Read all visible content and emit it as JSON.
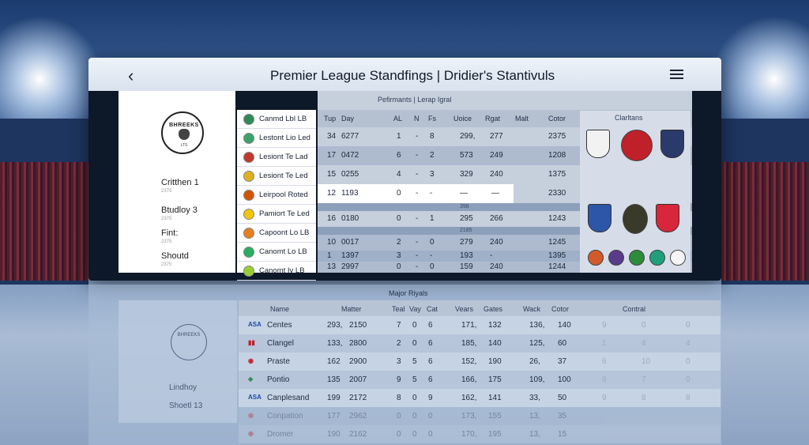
{
  "header": {
    "back_icon": "‹",
    "title": "Premier League Standfings | Dridier's Stantivuls"
  },
  "left_panel": {
    "crest_text": "BHREEKS",
    "crest_sub": "LTS",
    "stats": [
      {
        "label": "Critthen 1",
        "sub": "2375"
      },
      {
        "label": "Btudloy 3",
        "sub": "2375"
      },
      {
        "label": "Fint:",
        "sub": "2375"
      },
      {
        "label": "Shoutd",
        "sub": "2375"
      }
    ]
  },
  "teams": [
    "Canmd Lbl LB",
    "Lestont Lio Led",
    "Lesiont Te Lad",
    "Lesiont Te Led",
    "Leirpool Roted",
    "Pamiort Te Led",
    "Capoont Lo LB",
    "Canomt Lo LB",
    "Canomt Iv LB"
  ],
  "table": {
    "title": "Pefirmants | Lerap Igral",
    "headers": [
      "Tup",
      "Day",
      "AL",
      "N",
      "Fs",
      "Uoice",
      "Rgat",
      "Malt",
      "Cotor"
    ],
    "rows": [
      [
        "34",
        "6277",
        "1",
        "-",
        "8",
        "299,",
        "277",
        "2375"
      ],
      [
        "17",
        "0472",
        "6",
        "-",
        "2",
        "573",
        "249",
        "1208"
      ],
      [
        "15",
        "0255",
        "4",
        "-",
        "3",
        "329",
        "240",
        "1375"
      ],
      [
        "12",
        "1193",
        "0",
        "-",
        "-",
        "—",
        "—",
        "2330"
      ],
      [
        "16",
        "0180",
        "0",
        "-",
        "1",
        "295",
        "266",
        "1243"
      ],
      [
        "10",
        "0017",
        "2",
        "-",
        "0",
        "279",
        "240",
        "1245"
      ],
      [
        "1",
        "1397",
        "3",
        "-",
        "-",
        "193",
        "-",
        "1395"
      ],
      [
        "13",
        "2997",
        "0",
        "-",
        "0",
        "159",
        "240",
        "1244"
      ]
    ],
    "separators": [
      "398",
      "2185"
    ]
  },
  "clubs_panel": {
    "title": "Clarltans"
  },
  "lower": {
    "title": "Major Riyals",
    "headers": [
      "Name",
      "Matter",
      "Teal",
      "Vay",
      "Cat",
      "Vears",
      "Gates",
      "Wack",
      "Cotor",
      "Contral"
    ],
    "crest_text": "BHREEKS",
    "stats": [
      "Lindhoy",
      "Shoetl 13"
    ],
    "rows": [
      {
        "flag": "ASA",
        "name": "Centes",
        "v": [
          "293,",
          "2150",
          "7",
          "0",
          "6",
          "171,",
          "132",
          "136,",
          "140"
        ],
        "ghost": [
          "9",
          "0",
          "0"
        ]
      },
      {
        "flag": "▮▮",
        "name": "Clangel",
        "v": [
          "133,",
          "2800",
          "2",
          "0",
          "6",
          "185,",
          "140",
          "125,",
          "60"
        ],
        "ghost": [
          "1",
          "4",
          "4"
        ]
      },
      {
        "flag": "◉",
        "name": "Praste",
        "v": [
          "162",
          "2900",
          "3",
          "5",
          "6",
          "152,",
          "190",
          "26,",
          "37"
        ],
        "ghost": [
          "6",
          "10",
          "0"
        ]
      },
      {
        "flag": "◈",
        "name": "Pontio",
        "v": [
          "135",
          "2007",
          "9",
          "5",
          "6",
          "166,",
          "175",
          "109,",
          "100"
        ],
        "ghost": [
          "6",
          "7",
          "0"
        ]
      },
      {
        "flag": "ASA",
        "name": "Canplesand",
        "v": [
          "199",
          "2172",
          "8",
          "0",
          "9",
          "162,",
          "141",
          "33,",
          "50"
        ],
        "ghost": [
          "9",
          "8",
          "8"
        ]
      },
      {
        "flag": "◉",
        "name": "Conpation",
        "v": [
          "177",
          "2962",
          "0",
          "0",
          "0",
          "173,",
          "155",
          "13,",
          "35"
        ],
        "ghost": [
          "",
          "",
          ""
        ]
      },
      {
        "flag": "◉",
        "name": "Dromer",
        "v": [
          "190",
          "2162",
          "0",
          "0",
          "0",
          "170,",
          "195",
          "13,",
          "15"
        ],
        "ghost": [
          "",
          "",
          ""
        ]
      }
    ]
  },
  "colors": {
    "accent": "#1b3b6e",
    "table_bg": "#c6cfdc"
  }
}
